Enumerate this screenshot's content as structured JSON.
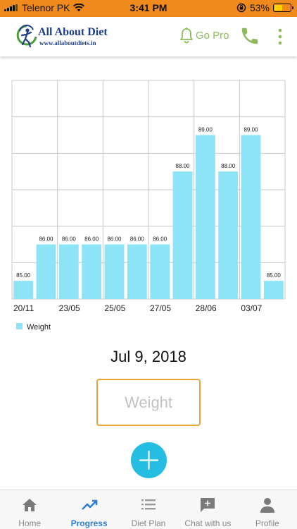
{
  "status_bar": {
    "carrier": "Telenor PK",
    "time": "3:41 PM",
    "battery_percent": "53%",
    "battery_level": 0.53,
    "battery_color": "#ffd400",
    "background": "#f08a1c"
  },
  "header": {
    "logo_title": "All About Diet",
    "logo_url": "www.allaboutdiets.in",
    "go_pro_label": "Go Pro",
    "accent_color": "#8dbb5b",
    "icons": [
      "bell-icon",
      "phone-icon",
      "more-vert-icon"
    ]
  },
  "chart_data": {
    "type": "bar",
    "categories": [
      "20/11",
      "",
      "23/05",
      "",
      "25/05",
      "",
      "27/05",
      "",
      "28/06",
      "",
      "03/07",
      ""
    ],
    "series": [
      {
        "name": "Weight",
        "color": "#8ee4f7",
        "values": [
          85.0,
          86.0,
          86.0,
          86.0,
          86.0,
          86.0,
          86.0,
          88.0,
          89.0,
          88.0,
          89.0,
          85.0
        ],
        "labels": [
          "85.00",
          "86.00",
          "86.00",
          "86.00",
          "86.00",
          "86.00",
          "86.00",
          "88.00",
          "89.00",
          "88.00",
          "89.00",
          "85.00"
        ]
      }
    ],
    "ylim": [
      84.5,
      90.5
    ],
    "grid": true,
    "legend": "bottom-left",
    "title": "",
    "xlabel": "",
    "ylabel": ""
  },
  "main": {
    "date": "Jul 9, 2018",
    "weight_placeholder": "Weight",
    "weight_value": "",
    "add_icon": "plus-icon",
    "add_color": "#26bde3"
  },
  "bottom_nav": {
    "active": "Progress",
    "active_color": "#2f7fd7",
    "items": [
      {
        "label": "Home",
        "icon": "home-icon"
      },
      {
        "label": "Progress",
        "icon": "trending-up-icon"
      },
      {
        "label": "Diet Plan",
        "icon": "list-icon"
      },
      {
        "label": "Chat with us",
        "icon": "chat-icon"
      },
      {
        "label": "Profile",
        "icon": "person-icon"
      }
    ]
  }
}
